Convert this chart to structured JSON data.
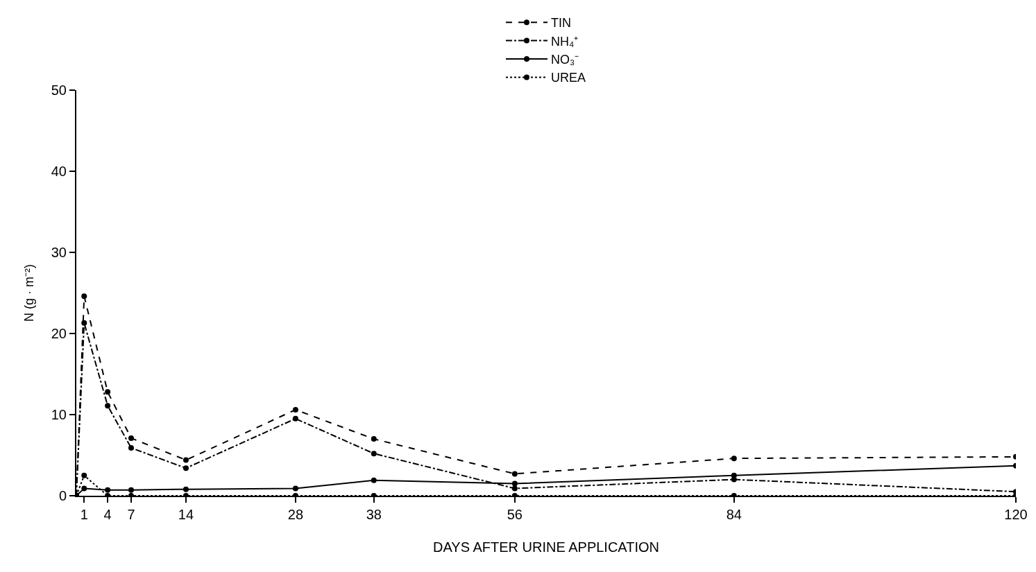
{
  "chart_data": {
    "type": "line",
    "xlabel": "DAYS AFTER URINE APPLICATION",
    "ylabel": "N (g · m⁻²)",
    "x": [
      0,
      1,
      4,
      7,
      14,
      28,
      38,
      56,
      84,
      120
    ],
    "series": [
      {
        "name": "TIN",
        "color": "#000000",
        "line_style": "dashed",
        "values": [
          0,
          24.6,
          12.8,
          7.1,
          4.4,
          10.6,
          7.0,
          2.7,
          4.6,
          4.8
        ]
      },
      {
        "name": "NH₄⁺",
        "color": "#000000",
        "line_style": "dashdot",
        "values": [
          0,
          21.3,
          11.1,
          5.9,
          3.4,
          9.5,
          5.2,
          0.9,
          2.0,
          0.5
        ]
      },
      {
        "name": "NO₃⁻",
        "color": "#000000",
        "line_style": "solid",
        "values": [
          0,
          0.9,
          0.7,
          0.7,
          0.8,
          0.9,
          1.9,
          1.5,
          2.5,
          3.7
        ]
      },
      {
        "name": "UREA",
        "color": "#000000",
        "line_style": "dotted",
        "values": [
          0,
          2.5,
          0,
          0,
          0,
          0,
          0,
          0,
          0,
          0
        ]
      }
    ],
    "xlim": [
      0,
      120
    ],
    "xticks": [
      1,
      4,
      7,
      14,
      28,
      38,
      56,
      84,
      120
    ],
    "ylim": [
      0,
      50
    ],
    "yticks": [
      0,
      10,
      20,
      30,
      40,
      50
    ],
    "legend": "top",
    "marker": "circle"
  }
}
